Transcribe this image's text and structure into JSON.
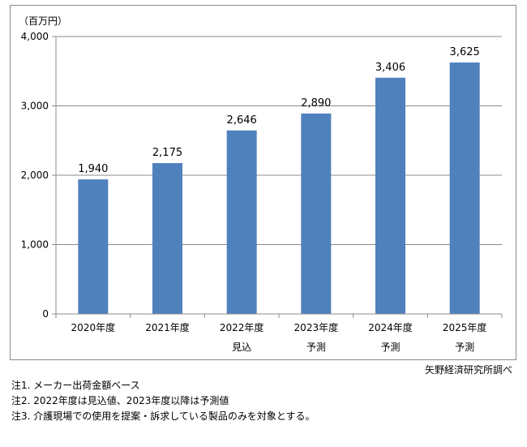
{
  "chart_data": {
    "type": "bar",
    "unit_label": "（百万円）",
    "categories": [
      {
        "line1": "2020年度",
        "line2": ""
      },
      {
        "line1": "2021年度",
        "line2": ""
      },
      {
        "line1": "2022年度",
        "line2": "見込"
      },
      {
        "line1": "2023年度",
        "line2": "予測"
      },
      {
        "line1": "2024年度",
        "line2": "予測"
      },
      {
        "line1": "2025年度",
        "line2": "予測"
      }
    ],
    "values": [
      1940,
      2175,
      2646,
      2890,
      3406,
      3625
    ],
    "value_labels": [
      "1,940",
      "2,175",
      "2,646",
      "2,890",
      "3,406",
      "3,625"
    ],
    "ylim": [
      0,
      4000
    ],
    "yticks": [
      {
        "value": 0,
        "label": "0"
      },
      {
        "value": 1000,
        "label": "1,000"
      },
      {
        "value": 2000,
        "label": "2,000"
      },
      {
        "value": 3000,
        "label": "3,000"
      },
      {
        "value": 4000,
        "label": "4,000"
      }
    ],
    "bar_color": "#4f81bd",
    "grid": true
  },
  "source": "矢野経済研究所調べ",
  "notes": [
    "注1.  メーカー出荷金額ベース",
    "注2.  2022年度は見込値、2023年度以降は予測値",
    "注3.  介護現場での使用を提案・訴求している製品のみを対象とする。"
  ]
}
